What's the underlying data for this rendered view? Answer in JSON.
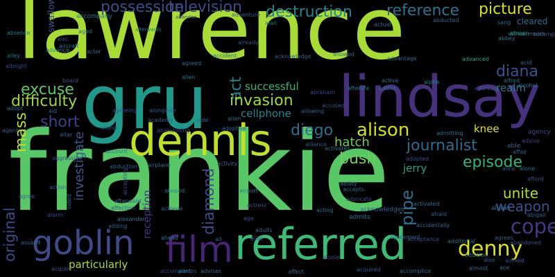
{
  "cloud": {
    "background": "#000000",
    "words": [
      {
        "text": "lawrence",
        "color": "#a8db34"
      },
      {
        "text": "frankie",
        "color": "#58c765"
      },
      {
        "text": "gru",
        "color": "#1f9a8a"
      },
      {
        "text": "lindsay",
        "color": "#46317e"
      },
      {
        "text": "dennis",
        "color": "#c0df25"
      },
      {
        "text": "referred",
        "color": "#3bbb75"
      },
      {
        "text": "goblin",
        "color": "#3e4a89"
      },
      {
        "text": "film",
        "color": "#482475"
      },
      {
        "text": "possession",
        "color": "#3b518b"
      },
      {
        "text": "television",
        "color": "#3e4a89"
      },
      {
        "text": "destruction",
        "color": "#24868e"
      },
      {
        "text": "reference",
        "color": "#2c718e"
      },
      {
        "text": "picture",
        "color": "#d8e219"
      },
      {
        "text": "excuse",
        "color": "#5ec962"
      },
      {
        "text": "difficulty",
        "color": "#9fda3a"
      },
      {
        "text": "act",
        "color": "#25838e"
      },
      {
        "text": "invasion",
        "color": "#a0da39"
      },
      {
        "text": "successful",
        "color": "#35b779"
      },
      {
        "text": "cellphone",
        "color": "#23898e"
      },
      {
        "text": "alison",
        "color": "#d5e21a"
      },
      {
        "text": "diego",
        "color": "#2d708e"
      },
      {
        "text": "journalist",
        "color": "#2f6c8e"
      },
      {
        "text": "episode",
        "color": "#31b57b"
      },
      {
        "text": "diana",
        "color": "#3a538b"
      },
      {
        "text": "realm",
        "color": "#287c8e"
      },
      {
        "text": "short",
        "color": "#433e85"
      },
      {
        "text": "mass",
        "color": "#c2df23"
      },
      {
        "text": "hatch",
        "color": "#6ccd5a"
      },
      {
        "text": "bush",
        "color": "#6ece58"
      },
      {
        "text": "jerry",
        "color": "#21a685"
      },
      {
        "text": "knee",
        "color": "#dde318"
      },
      {
        "text": "unite",
        "color": "#b5de2b"
      },
      {
        "text": "weapon",
        "color": "#3b528b"
      },
      {
        "text": "cope",
        "color": "#443a83"
      },
      {
        "text": "denny",
        "color": "#d8e219"
      },
      {
        "text": "pipe",
        "color": "#2d708e"
      },
      {
        "text": "diamond",
        "color": "#3e4c8a"
      },
      {
        "text": "investigate",
        "color": "#375b8d"
      },
      {
        "text": "reception",
        "color": "#46307e"
      },
      {
        "text": "original",
        "color": "#3e4c8a"
      },
      {
        "text": "particularly",
        "color": "#b2dd2d"
      },
      {
        "text": "swallow",
        "color": "#3a548c"
      },
      {
        "text": "cleared",
        "color": "#2e6f8e"
      },
      {
        "text": "accompany",
        "color": "#2a788e"
      },
      {
        "text": "afterwards",
        "color": "#29798e"
      },
      {
        "text": "abandon",
        "color": "#3d4e8a"
      },
      {
        "text": "adventure",
        "color": "#34608d"
      },
      {
        "text": "abducted",
        "color": "#32658e"
      },
      {
        "text": "absence",
        "color": "#26828e"
      },
      {
        "text": "aged",
        "color": "#306a8e"
      },
      {
        "text": "alan",
        "color": "#2b748e"
      },
      {
        "text": "actual",
        "color": "#2f6b8e"
      },
      {
        "text": "african",
        "color": "#22a884"
      },
      {
        "text": "abbey",
        "color": "#2c728e"
      },
      {
        "text": "alley",
        "color": "#2a768e"
      },
      {
        "text": "albright",
        "color": "#3e4989"
      },
      {
        "text": "advance",
        "color": "#25848e"
      },
      {
        "text": "aircraft",
        "color": "#2a768e"
      },
      {
        "text": "accident",
        "color": "#2c728e"
      },
      {
        "text": "acknowledge",
        "color": "#35608d"
      },
      {
        "text": "advantage",
        "color": "#31668e"
      },
      {
        "text": "advanced",
        "color": "#22a785"
      },
      {
        "text": "acid",
        "color": "#306a8e"
      },
      {
        "text": "actor",
        "color": "#2c718e"
      },
      {
        "text": "agreed",
        "color": "#2f6c8e"
      },
      {
        "text": "allowed",
        "color": "#2e6e8e"
      },
      {
        "text": "active",
        "color": "#2d718e"
      },
      {
        "text": "alpha",
        "color": "#24878e"
      },
      {
        "text": "alfred",
        "color": "#2e6f8e"
      },
      {
        "text": "alcohol",
        "color": "#2c738e"
      },
      {
        "text": "address",
        "color": "#3a548c"
      },
      {
        "text": "board",
        "color": "#39568c"
      },
      {
        "text": "alien",
        "color": "#2b758e"
      },
      {
        "text": "afterlife",
        "color": "#29798e"
      },
      {
        "text": "addict",
        "color": "#2c718e"
      },
      {
        "text": "abraham",
        "color": "#3f4788"
      },
      {
        "text": "accused",
        "color": "#365c8d"
      },
      {
        "text": "allowing",
        "color": "#31668e"
      },
      {
        "text": "aid",
        "color": "#306a8e"
      },
      {
        "text": "academy",
        "color": "#35608d"
      },
      {
        "text": "alongside",
        "color": "#34618d"
      },
      {
        "text": "agreeing",
        "color": "#3c4f8a"
      },
      {
        "text": "admitting",
        "color": "#2d718e"
      },
      {
        "text": "agency",
        "color": "#3e4a89"
      },
      {
        "text": "adopt",
        "color": "#2b748e"
      },
      {
        "text": "agent",
        "color": "#32658e"
      },
      {
        "text": "altar",
        "color": "#2f6b8e"
      },
      {
        "text": "along",
        "color": "#2e6d8e"
      },
      {
        "text": "abandoning",
        "color": "#3f4889"
      },
      {
        "text": "aide",
        "color": "#2e6f8e"
      },
      {
        "text": "adoptive",
        "color": "#31678e"
      },
      {
        "text": "alien",
        "color": "#2e6d8e"
      },
      {
        "text": "activity",
        "color": "#355e8d"
      },
      {
        "text": "activates",
        "color": "#2b748e"
      },
      {
        "text": "alliance",
        "color": "#3a548c"
      },
      {
        "text": "advise",
        "color": "#414487"
      },
      {
        "text": "affair",
        "color": "#34618d"
      },
      {
        "text": "able",
        "color": "#35608d"
      },
      {
        "text": "aggressive",
        "color": "#3f4788"
      },
      {
        "text": "account",
        "color": "#2a778e"
      },
      {
        "text": "airplane",
        "color": "#2c718e"
      },
      {
        "text": "abduction",
        "color": "#306a8e"
      },
      {
        "text": "adopted",
        "color": "#3d4e8a"
      },
      {
        "text": "alone",
        "color": "#2c738e"
      },
      {
        "text": "alice",
        "color": "#375a8c"
      },
      {
        "text": "afford",
        "color": "#3d4d8a"
      },
      {
        "text": "ability",
        "color": "#2b748e"
      },
      {
        "text": "accepts",
        "color": "#2f6b8e"
      },
      {
        "text": "acting",
        "color": "#2e6e8e"
      },
      {
        "text": "advocate",
        "color": "#3f4889"
      },
      {
        "text": "acknowledges",
        "color": "#32648e"
      },
      {
        "text": "admits",
        "color": "#2e6e8e"
      },
      {
        "text": "activated",
        "color": "#2f6c8e"
      },
      {
        "text": "afraid",
        "color": "#365d8d"
      },
      {
        "text": "accidentally",
        "color": "#2f6c8e"
      },
      {
        "text": "allows",
        "color": "#2e6d8e"
      },
      {
        "text": "abigail",
        "color": "#32648e"
      },
      {
        "text": "alarm",
        "color": "#3d4e8a"
      },
      {
        "text": "alexander",
        "color": "#2c728e"
      },
      {
        "text": "adding",
        "color": "#31668e"
      },
      {
        "text": "age",
        "color": "#3a548c"
      },
      {
        "text": "airport",
        "color": "#2a778e"
      },
      {
        "text": "affection",
        "color": "#355e8d"
      },
      {
        "text": "achieve",
        "color": "#34618d"
      },
      {
        "text": "abused",
        "color": "#2a778e"
      },
      {
        "text": "afterward",
        "color": "#2f6b8e"
      },
      {
        "text": "agree",
        "color": "#355e8d"
      },
      {
        "text": "action",
        "color": "#33628d"
      },
      {
        "text": "agrees",
        "color": "#34618d"
      },
      {
        "text": "sided",
        "color": "#34618d"
      },
      {
        "text": "accepting",
        "color": "#3e4c8a"
      },
      {
        "text": "actress",
        "color": "#3d4d8a"
      },
      {
        "text": "adults",
        "color": "#2d708e"
      },
      {
        "text": "ahead",
        "color": "#2b748e"
      },
      {
        "text": "all",
        "color": "#306a8e"
      },
      {
        "text": "alias",
        "color": "#365c8d"
      },
      {
        "text": "agreement",
        "color": "#2e6d8e"
      },
      {
        "text": "acceptance",
        "color": "#3d4e8a"
      },
      {
        "text": "additional",
        "color": "#2c728e"
      },
      {
        "text": "alex",
        "color": "#34608d"
      },
      {
        "text": "abandoned",
        "color": "#3b528b"
      },
      {
        "text": "almost",
        "color": "#2f6b8e"
      },
      {
        "text": "ace",
        "color": "#2d718e"
      },
      {
        "text": "acquire",
        "color": "#3a538b"
      },
      {
        "text": "accompanies",
        "color": "#414387"
      },
      {
        "text": "alert",
        "color": "#2b748e"
      },
      {
        "text": "advises",
        "color": "#2f6c8e"
      },
      {
        "text": "affect",
        "color": "#306a8e"
      },
      {
        "text": "acquired",
        "color": "#39558c"
      },
      {
        "text": "accomplice",
        "color": "#2d718e"
      },
      {
        "text": "addition",
        "color": "#2c738e"
      },
      {
        "text": "abuse",
        "color": "#3f4788"
      },
      {
        "text": "airfield",
        "color": "#3b528b"
      },
      {
        "text": "assault",
        "color": "#2f6b8e"
      },
      {
        "text": "alec",
        "color": "#3d4e8a"
      },
      {
        "text": "sang",
        "color": "#2e6f8e"
      },
      {
        "text": "accompanied",
        "color": "#3a548c"
      },
      {
        "text": "already",
        "color": "#3a538b"
      },
      {
        "text": "alamin",
        "color": "#2a768e"
      },
      {
        "text": "aftermath",
        "color": "#2e6e8e"
      }
    ]
  }
}
